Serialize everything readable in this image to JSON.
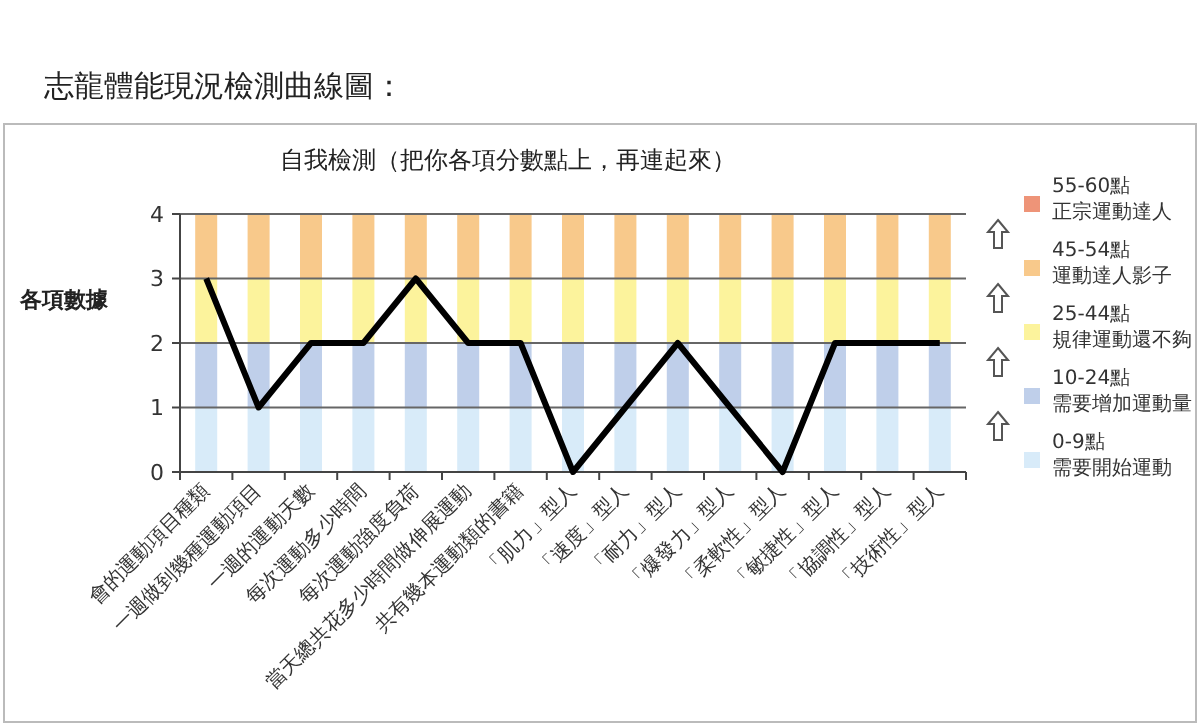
{
  "chart_data": {
    "type": "bar",
    "title": "志龍體能現況檢測曲線圖：",
    "subtitle": "自我檢測（把你各項分數點上，再連起來）",
    "ylabel": "各項數據",
    "categories": [
      "會的運動項目種類",
      "一週做到幾種運動項目",
      "一週的運動天數",
      "每次運動多少時間",
      "每次運動強度負荷",
      "當天總共花多少時間做伸展運動",
      "共有幾本運動類的書籍",
      "「肌力」型人",
      "「速度」型人",
      "「耐力」型人",
      "「爆發力」型人",
      "「柔軟性」型人",
      "「敏捷性」型人",
      "「協調性」型人",
      "「技術性」型人"
    ],
    "stacked": true,
    "ylim": [
      0,
      4
    ],
    "yticks": [
      0,
      1,
      2,
      3,
      4
    ],
    "grid": "y",
    "legend": "right",
    "series": [
      {
        "name": "0-9點需要開始運動",
        "color": "#d8ebf9",
        "values": [
          1,
          1,
          1,
          1,
          1,
          1,
          1,
          1,
          1,
          1,
          1,
          1,
          1,
          1,
          1
        ]
      },
      {
        "name": "10-24點需要增加運動量",
        "color": "#bfcfea",
        "values": [
          1,
          1,
          1,
          1,
          1,
          1,
          1,
          1,
          1,
          1,
          1,
          1,
          1,
          1,
          1
        ]
      },
      {
        "name": "25-44點規律運動還不夠",
        "color": "#fcf39c",
        "values": [
          1,
          1,
          1,
          1,
          1,
          1,
          1,
          1,
          1,
          1,
          1,
          1,
          1,
          1,
          1
        ]
      },
      {
        "name": "45-54點運動達人影子",
        "color": "#f8c98b",
        "values": [
          1,
          1,
          1,
          1,
          1,
          1,
          1,
          1,
          1,
          1,
          1,
          1,
          1,
          1,
          1
        ]
      },
      {
        "name": "55-60點正宗運動達人",
        "color": "#ee9478",
        "values": [
          null,
          null,
          null,
          null,
          null,
          null,
          null,
          null,
          null,
          null,
          null,
          null,
          null,
          null,
          null
        ]
      },
      {
        "type": "line",
        "color": "#000000",
        "marker": "none",
        "values": [
          3,
          1,
          2,
          2,
          3,
          2,
          2,
          0,
          1,
          2,
          1,
          0,
          2,
          2,
          2
        ]
      }
    ]
  }
}
